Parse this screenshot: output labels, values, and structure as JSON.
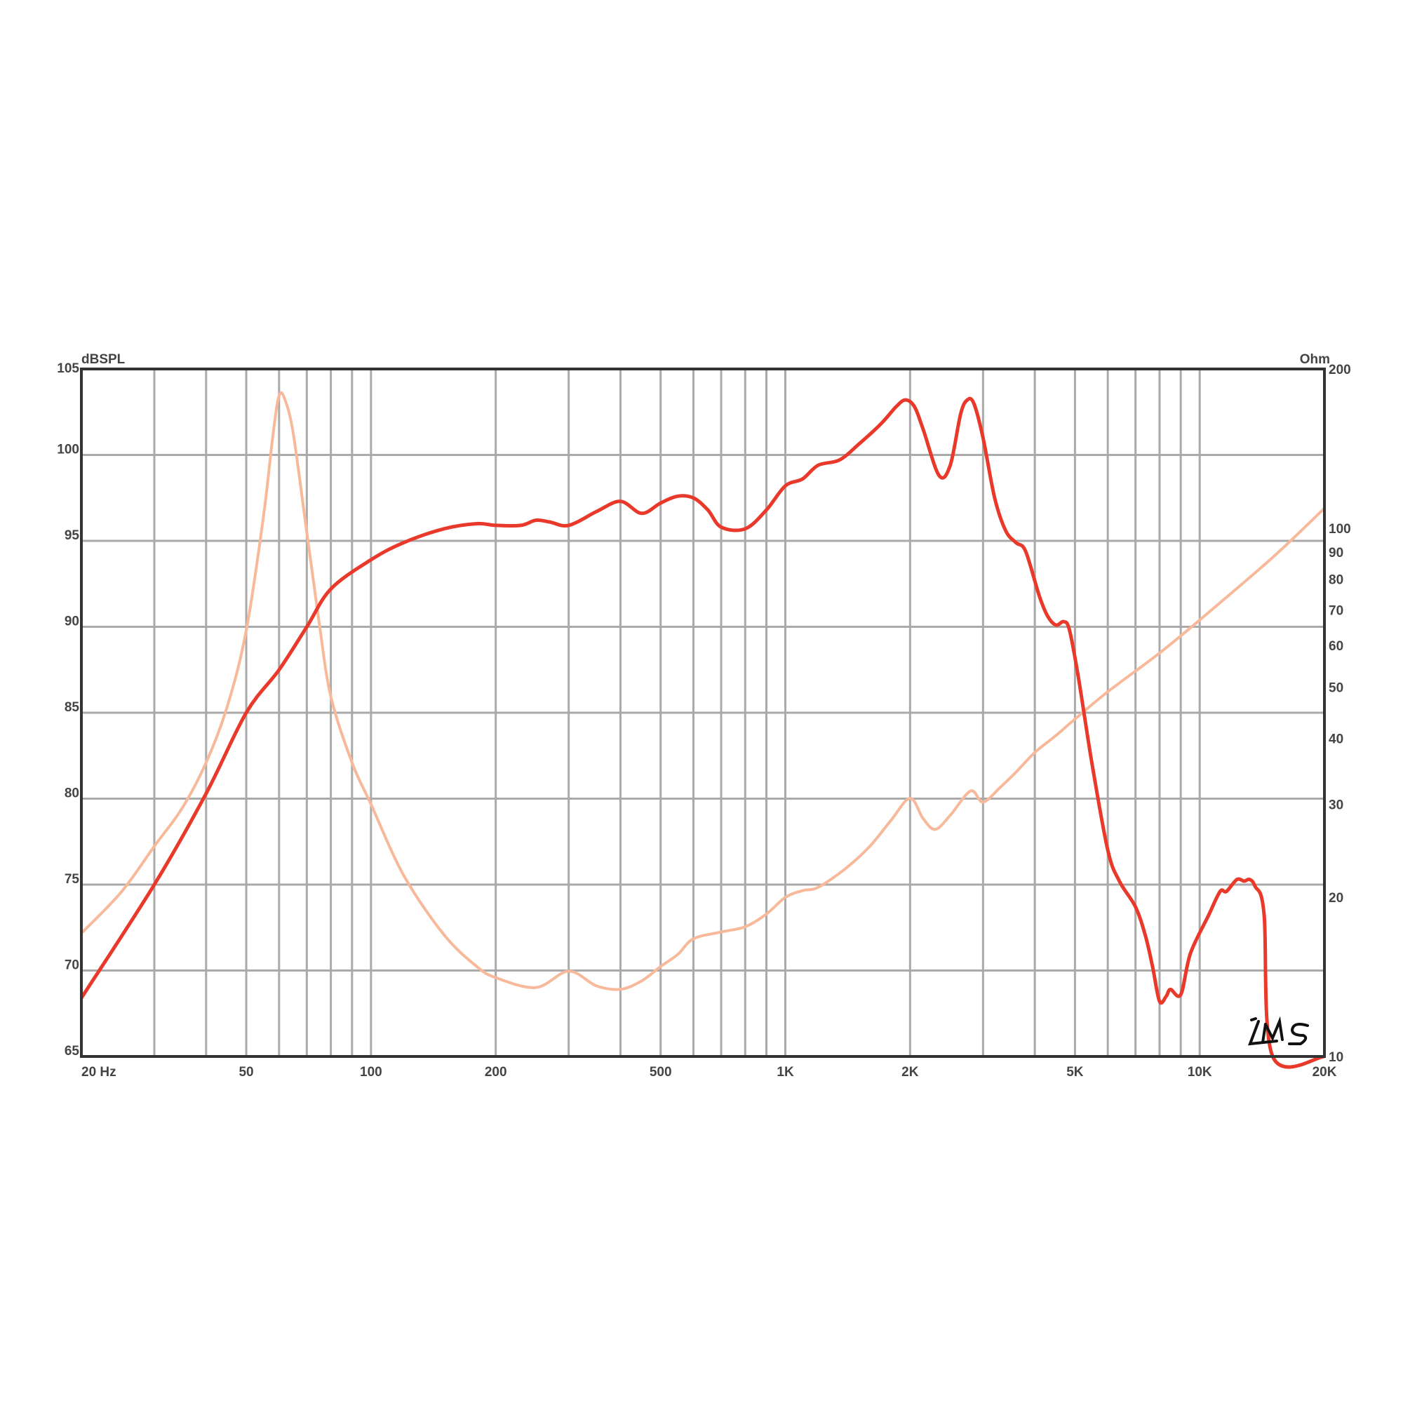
{
  "chart_data": {
    "type": "line",
    "title": "",
    "x_scale": "log",
    "xlim": [
      20,
      20000
    ],
    "x_tick_labels": [
      {
        "value": 20,
        "label": "20  Hz"
      },
      {
        "value": 50,
        "label": "50"
      },
      {
        "value": 100,
        "label": "100"
      },
      {
        "value": 200,
        "label": "200"
      },
      {
        "value": 500,
        "label": "500"
      },
      {
        "value": 1000,
        "label": "1K"
      },
      {
        "value": 2000,
        "label": "2K"
      },
      {
        "value": 5000,
        "label": "5K"
      },
      {
        "value": 10000,
        "label": "10K"
      },
      {
        "value": 20000,
        "label": "20K"
      }
    ],
    "y_left": {
      "label": "dBSPL",
      "scale": "linear",
      "lim": [
        65,
        105
      ],
      "ticks": [
        65,
        70,
        75,
        80,
        85,
        90,
        95,
        100,
        105
      ]
    },
    "y_right": {
      "label": "Ohm",
      "scale": "log",
      "lim": [
        10,
        200
      ],
      "ticks": [
        10,
        20,
        30,
        40,
        50,
        60,
        70,
        80,
        90,
        100,
        200
      ]
    },
    "grid": true,
    "logo": "LMS",
    "series": [
      {
        "axis": "left",
        "color": "#e8392a",
        "points": [
          [
            20,
            68.4
          ],
          [
            30,
            75
          ],
          [
            40,
            80.3
          ],
          [
            50,
            85
          ],
          [
            60,
            87.5
          ],
          [
            70,
            90
          ],
          [
            80,
            92.2
          ],
          [
            100,
            93.9
          ],
          [
            120,
            94.9
          ],
          [
            150,
            95.7
          ],
          [
            180,
            96
          ],
          [
            200,
            95.9
          ],
          [
            230,
            95.9
          ],
          [
            250,
            96.2
          ],
          [
            270,
            96.1
          ],
          [
            300,
            95.9
          ],
          [
            350,
            96.7
          ],
          [
            400,
            97.3
          ],
          [
            450,
            96.6
          ],
          [
            500,
            97.2
          ],
          [
            550,
            97.6
          ],
          [
            600,
            97.5
          ],
          [
            650,
            96.8
          ],
          [
            700,
            95.8
          ],
          [
            800,
            95.7
          ],
          [
            900,
            96.8
          ],
          [
            1000,
            98.2
          ],
          [
            1100,
            98.6
          ],
          [
            1200,
            99.4
          ],
          [
            1350,
            99.7
          ],
          [
            1500,
            100.6
          ],
          [
            1700,
            101.8
          ],
          [
            1850,
            102.8
          ],
          [
            1950,
            103.2
          ],
          [
            2050,
            102.8
          ],
          [
            2150,
            101.5
          ],
          [
            2350,
            98.8
          ],
          [
            2500,
            99.4
          ],
          [
            2650,
            102.4
          ],
          [
            2750,
            103.2
          ],
          [
            2850,
            103
          ],
          [
            3000,
            101
          ],
          [
            3200,
            97.5
          ],
          [
            3400,
            95.6
          ],
          [
            3600,
            94.9
          ],
          [
            3800,
            94.4
          ],
          [
            4100,
            91.8
          ],
          [
            4300,
            90.6
          ],
          [
            4500,
            90.1
          ],
          [
            4700,
            90.3
          ],
          [
            4850,
            89.8
          ],
          [
            5100,
            87
          ],
          [
            5500,
            82
          ],
          [
            6000,
            77
          ],
          [
            6400,
            75.2
          ],
          [
            7000,
            73.7
          ],
          [
            7400,
            72
          ],
          [
            7700,
            70.2
          ],
          [
            8000,
            68.2
          ],
          [
            8300,
            68.5
          ],
          [
            8500,
            68.9
          ],
          [
            9000,
            68.6
          ],
          [
            9500,
            71
          ],
          [
            10500,
            73.2
          ],
          [
            11200,
            74.6
          ],
          [
            11600,
            74.6
          ],
          [
            12300,
            75.3
          ],
          [
            12800,
            75.2
          ],
          [
            13200,
            75.3
          ],
          [
            13600,
            74.9
          ],
          [
            14300,
            73.3
          ],
          [
            15000,
            65
          ],
          [
            20000,
            65
          ]
        ]
      },
      {
        "axis": "right",
        "color": "#f7b99a",
        "points": [
          [
            20,
            17.1
          ],
          [
            25,
            20.5
          ],
          [
            30,
            25
          ],
          [
            35,
            29.5
          ],
          [
            40,
            36
          ],
          [
            45,
            46
          ],
          [
            50,
            64
          ],
          [
            55,
            105
          ],
          [
            58,
            150
          ],
          [
            60,
            178
          ],
          [
            62,
            175
          ],
          [
            65,
            150
          ],
          [
            70,
            98
          ],
          [
            75,
            66
          ],
          [
            80,
            48
          ],
          [
            90,
            36
          ],
          [
            100,
            30
          ],
          [
            120,
            22
          ],
          [
            150,
            17
          ],
          [
            180,
            14.8
          ],
          [
            200,
            14.1
          ],
          [
            250,
            13.5
          ],
          [
            300,
            14.5
          ],
          [
            350,
            13.6
          ],
          [
            400,
            13.4
          ],
          [
            450,
            13.9
          ],
          [
            500,
            14.8
          ],
          [
            550,
            15.6
          ],
          [
            600,
            16.7
          ],
          [
            700,
            17.2
          ],
          [
            800,
            17.6
          ],
          [
            900,
            18.6
          ],
          [
            1000,
            20
          ],
          [
            1100,
            20.6
          ],
          [
            1200,
            20.9
          ],
          [
            1400,
            22.7
          ],
          [
            1600,
            25
          ],
          [
            1800,
            28
          ],
          [
            2000,
            30.8
          ],
          [
            2150,
            28.2
          ],
          [
            2300,
            26.9
          ],
          [
            2500,
            28.6
          ],
          [
            2800,
            31.8
          ],
          [
            3000,
            30.3
          ],
          [
            3300,
            32.3
          ],
          [
            3600,
            34.5
          ],
          [
            4000,
            37.6
          ],
          [
            4500,
            40.5
          ],
          [
            5000,
            43.5
          ],
          [
            6000,
            49
          ],
          [
            8000,
            58
          ],
          [
            10000,
            67
          ],
          [
            15000,
            88
          ],
          [
            20000,
            109
          ]
        ]
      }
    ]
  }
}
